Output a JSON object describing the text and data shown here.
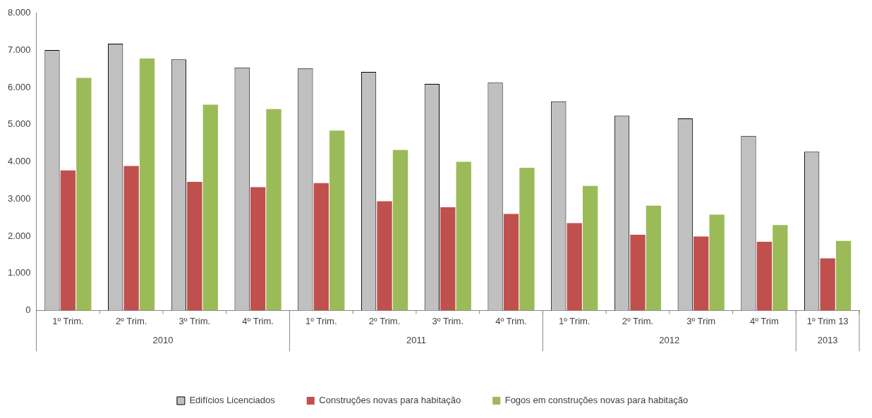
{
  "chart_data": {
    "type": "bar",
    "categories": [
      "1º Trim.",
      "2º Trim.",
      "3º Trim.",
      "4º Trim.",
      "1º Trim.",
      "2º Trim.",
      "3º Trim.",
      "4º Trim.",
      "1º Trim.",
      "2º Trim.",
      "3º Trim",
      "4º Trim",
      "1º Trim 13"
    ],
    "series": [
      {
        "name": "Edifícios Licenciados",
        "color": "#c0c0c0",
        "values": [
          7010,
          7180,
          6760,
          6540,
          6520,
          6420,
          6100,
          6130,
          5630,
          5240,
          5170,
          4700,
          4270
        ]
      },
      {
        "name": "Construções novas para habitação",
        "color": "#c0504d",
        "values": [
          3770,
          3890,
          3460,
          3320,
          3430,
          2940,
          2780,
          2600,
          2350,
          2040,
          1990,
          1850,
          1400
        ]
      },
      {
        "name": "Fogos em construções novas para habitação",
        "color": "#9bbb59",
        "values": [
          6260,
          6780,
          5540,
          5420,
          4840,
          4320,
          4000,
          3840,
          3350,
          2820,
          2580,
          2300,
          1870
        ]
      }
    ],
    "annotations": [
      "2010",
      "2011",
      "2012",
      "2013"
    ],
    "ylim": [
      0,
      8000
    ],
    "yticks": [
      {
        "value": 0,
        "label": "0"
      },
      {
        "value": 1000,
        "label": "1.000"
      },
      {
        "value": 2000,
        "label": "2.000"
      },
      {
        "value": 3000,
        "label": "3.000"
      },
      {
        "value": 4000,
        "label": "4.000"
      },
      {
        "value": 5000,
        "label": "5.000"
      },
      {
        "value": 6000,
        "label": "6.000"
      },
      {
        "value": 7000,
        "label": "7.000"
      },
      {
        "value": 8000,
        "label": "8.000"
      }
    ],
    "grid": false,
    "legend": "bottom"
  }
}
